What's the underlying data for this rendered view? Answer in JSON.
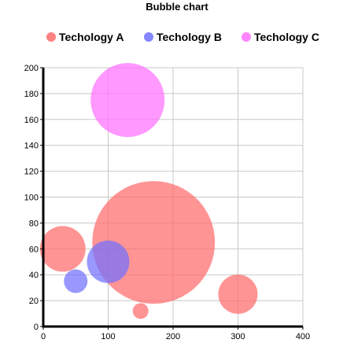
{
  "chart_data": {
    "type": "bubble",
    "title": "Bubble chart",
    "xlabel": "",
    "ylabel": "",
    "xlim": [
      0,
      400
    ],
    "ylim": [
      0,
      200
    ],
    "x_ticks": [
      0,
      100,
      200,
      300,
      400
    ],
    "y_ticks": [
      0,
      20,
      40,
      60,
      80,
      100,
      120,
      140,
      160,
      180,
      200
    ],
    "grid": true,
    "legend_position": "top",
    "series": [
      {
        "name": "Techology A",
        "color": "#ff6b6b",
        "points": [
          {
            "x": 30,
            "y": 60,
            "r": 29
          },
          {
            "x": 170,
            "y": 65,
            "r": 78
          },
          {
            "x": 150,
            "y": 12,
            "r": 10
          },
          {
            "x": 300,
            "y": 25,
            "r": 25
          }
        ]
      },
      {
        "name": "Techology B",
        "color": "#7070ff",
        "points": [
          {
            "x": 50,
            "y": 35,
            "r": 15
          },
          {
            "x": 100,
            "y": 50,
            "r": 27
          }
        ]
      },
      {
        "name": "Techology C",
        "color": "#ff70ff",
        "points": [
          {
            "x": 130,
            "y": 175,
            "r": 47
          }
        ]
      }
    ]
  }
}
